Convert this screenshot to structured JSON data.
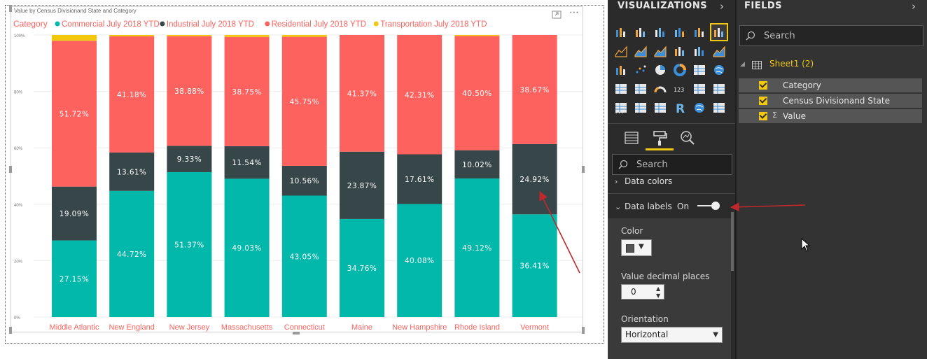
{
  "chart_data": {
    "type": "bar",
    "stacked": "100%",
    "title": "Value by Census Divisionand State and Category",
    "legend": {
      "title": "Category",
      "placement": "top-left",
      "entries": [
        {
          "name": "Commercial July 2018 YTD",
          "color": "#01B8AA"
        },
        {
          "name": "Industrial July 2018 YTD",
          "color": "#374649"
        },
        {
          "name": "Residential July 2018 YTD",
          "color": "#FD625E"
        },
        {
          "name": "Transportation July 2018 YTD",
          "color": "#F2C80F"
        }
      ]
    },
    "categories": [
      "Middle Atlantic",
      "New England",
      "New Jersey",
      "Massachusetts",
      "Connecticut",
      "Maine",
      "New Hampshire",
      "Rhode Island",
      "Vermont"
    ],
    "series": [
      {
        "name": "Commercial July 2018 YTD",
        "color": "#01B8AA",
        "values": [
          27.15,
          44.72,
          51.37,
          49.03,
          43.05,
          34.76,
          40.08,
          49.12,
          36.41
        ],
        "labels": [
          "27.15%",
          "44.72%",
          "51.37%",
          "49.03%",
          "43.05%",
          "34.76%",
          "40.08%",
          "49.12%",
          "36.41%"
        ]
      },
      {
        "name": "Industrial July 2018 YTD",
        "color": "#374649",
        "values": [
          19.09,
          13.61,
          9.33,
          11.54,
          10.56,
          23.87,
          17.61,
          10.02,
          24.92
        ],
        "labels": [
          "19.09%",
          "13.61%",
          "9.33%",
          "11.54%",
          "10.56%",
          "23.87%",
          "17.61%",
          "10.02%",
          "24.92%"
        ]
      },
      {
        "name": "Residential July 2018 YTD",
        "color": "#FD625E",
        "values": [
          51.72,
          41.18,
          38.88,
          38.75,
          45.75,
          41.37,
          42.31,
          40.5,
          38.67
        ],
        "labels": [
          "51.72%",
          "41.18%",
          "38.88%",
          "38.75%",
          "45.75%",
          "41.37%",
          "42.31%",
          "40.50%",
          "38.67%"
        ]
      },
      {
        "name": "Transportation July 2018 YTD",
        "color": "#F2C80F",
        "values": [
          2.04,
          0.49,
          0.42,
          0.68,
          0.64,
          0.0,
          0.0,
          0.36,
          0.0
        ],
        "labels": [
          "",
          "",
          "",
          "",
          "",
          "",
          "",
          "",
          ""
        ]
      }
    ],
    "yticks": [
      "0%",
      "20%",
      "40%",
      "60%",
      "80%",
      "100%"
    ],
    "ylim": [
      0,
      100
    ],
    "grid": true,
    "category_label_color": "#FD625E"
  },
  "visual_header": {
    "focus_icon": "focus-mode-icon",
    "more_icon": "more-options-icon"
  },
  "visualizations": {
    "title": "VISUALIZATIONS",
    "collapse_icon": "chevron-right-icon",
    "more_label": "...",
    "tabs": [
      {
        "icon": "fields-tab-icon"
      },
      {
        "icon": "format-paint-roller-icon"
      },
      {
        "icon": "analytics-magnifier-icon"
      }
    ],
    "search_placeholder": "Search",
    "sections": {
      "data_colors": "Data colors",
      "data_labels": "Data labels",
      "data_labels_state": "On"
    },
    "color_label": "Color",
    "decimal_label": "Value decimal places",
    "decimal_value": "0",
    "orientation_label": "Orientation",
    "orientation_value": "Horizontal"
  },
  "fields": {
    "title": "FIELDS",
    "collapse_icon": "chevron-right-icon",
    "search_placeholder": "Search",
    "table_name": "Sheet1 (2)",
    "items": [
      {
        "name": "Category",
        "sigma": ""
      },
      {
        "name": "Census Divisionand State",
        "sigma": ""
      },
      {
        "name": "Value",
        "sigma": "Σ"
      }
    ]
  },
  "colors": {
    "accent": "#F2C811",
    "pane_bg": "#2B2B2B",
    "fields_bg": "#333333",
    "annotation_arrow": "#C0282B"
  }
}
